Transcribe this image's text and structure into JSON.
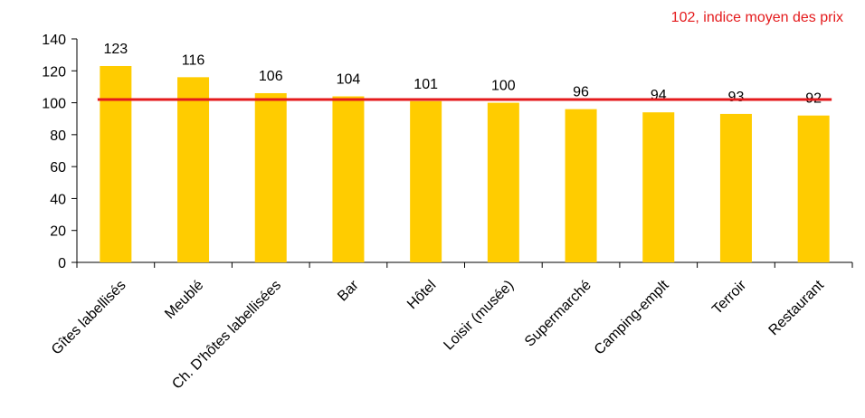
{
  "chart_data": {
    "type": "bar",
    "categories": [
      "Gîtes labellisés",
      "Meublé",
      "Ch. D'hôtes labellisées",
      "Bar",
      "Hôtel",
      "Loisir (musée)",
      "Supermarché",
      "Camping-emplt",
      "Terroir",
      "Restaurant"
    ],
    "values": [
      123,
      116,
      106,
      104,
      101,
      100,
      96,
      94,
      93,
      92
    ],
    "data_labels": [
      "123",
      "116",
      "106",
      "104",
      "101",
      "100",
      "96",
      "94",
      "93",
      "92"
    ],
    "ylim": [
      0,
      140
    ],
    "yticks": [
      0,
      20,
      40,
      60,
      80,
      100,
      120,
      140
    ],
    "ytick_labels": [
      "0",
      "20",
      "40",
      "60",
      "80",
      "100",
      "120",
      "140"
    ],
    "reference_line": {
      "value": 102,
      "label": "102, indice moyen des prix",
      "color": "#e41a1c"
    },
    "bar_color": "#ffcc00",
    "grid": false,
    "title": "",
    "xlabel": "",
    "ylabel": ""
  }
}
